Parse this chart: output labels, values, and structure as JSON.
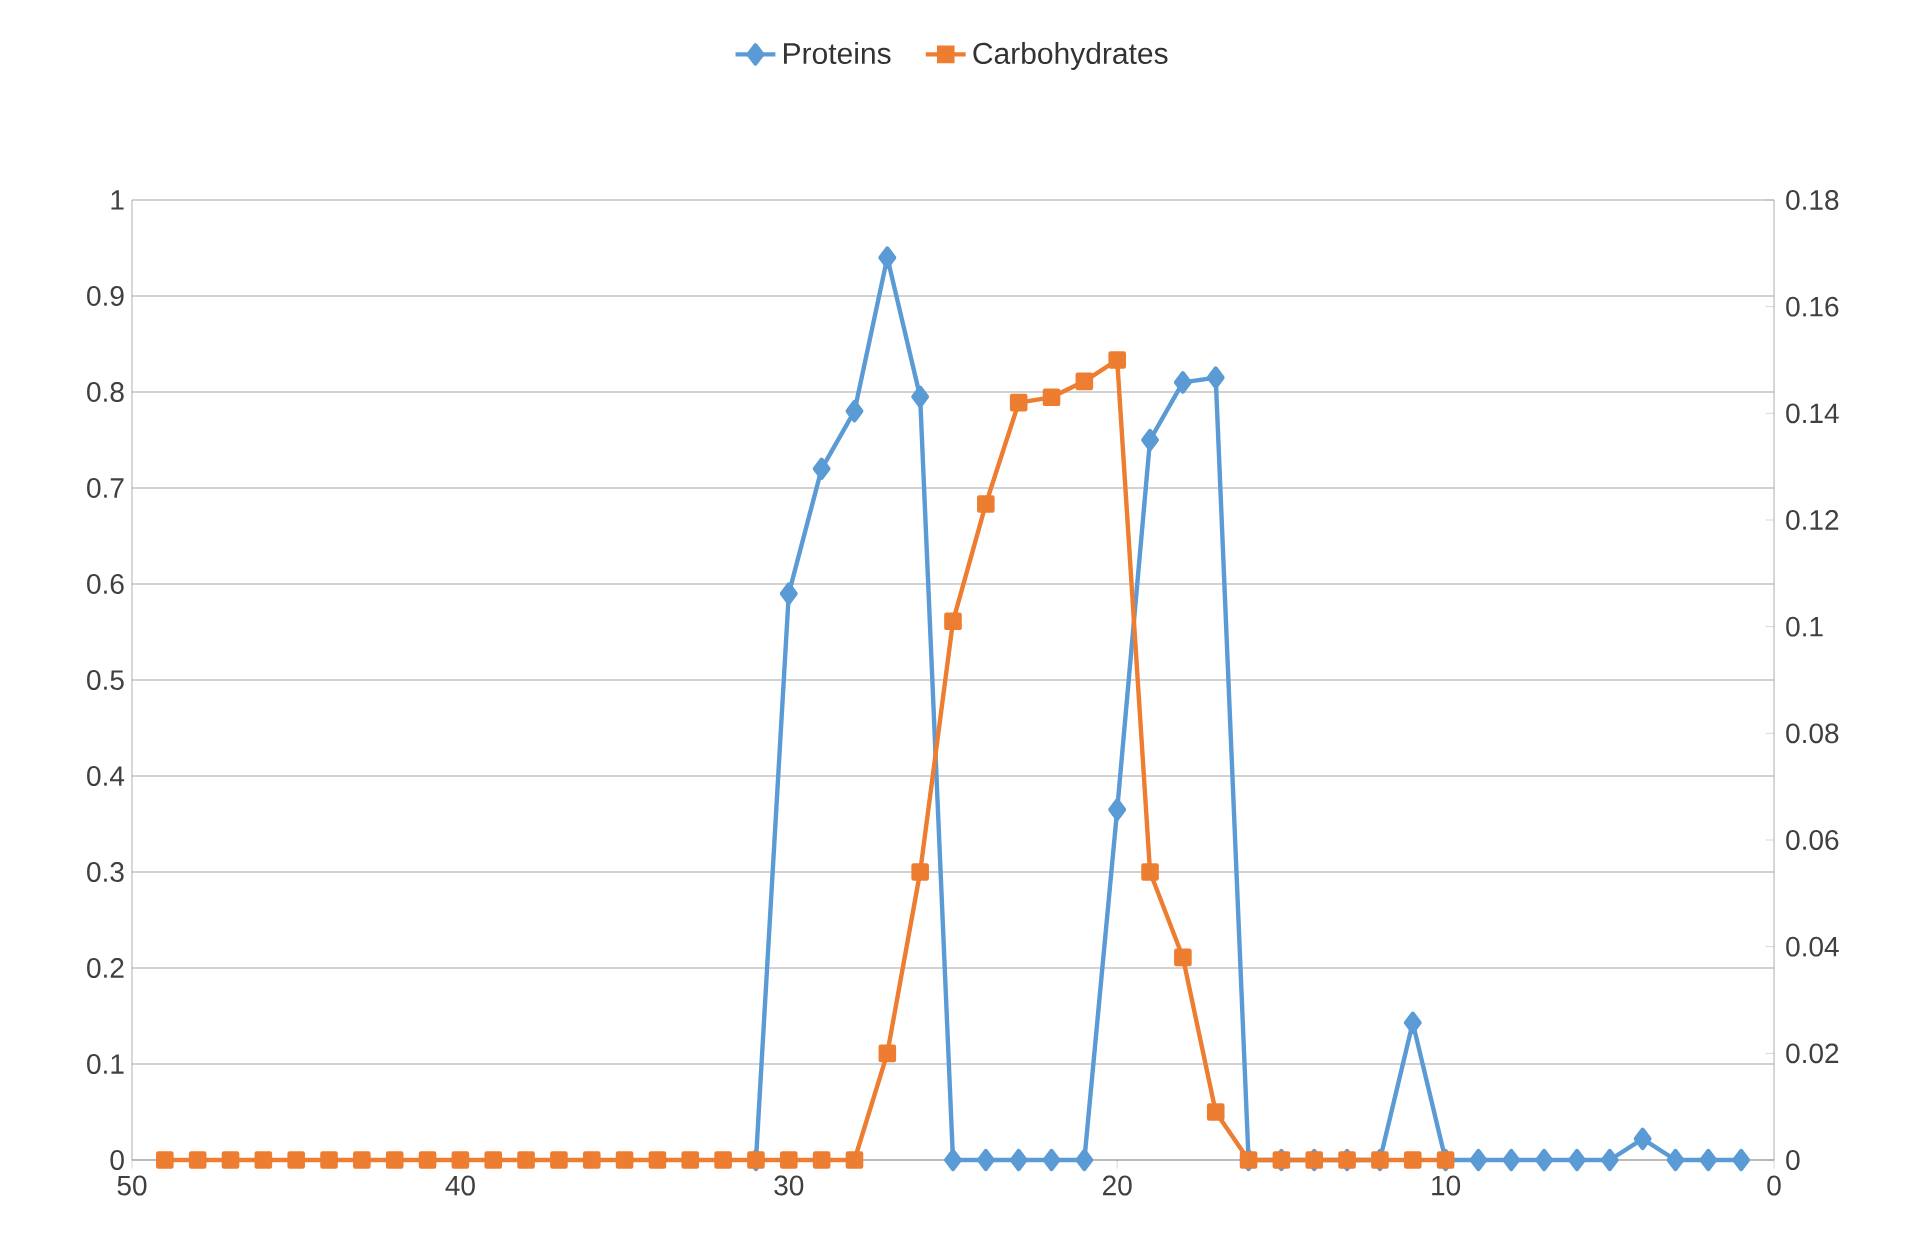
{
  "chart_data": {
    "type": "line",
    "legend": "top",
    "grid": "y",
    "xlim": [
      50,
      0
    ],
    "xticks": [
      50,
      40,
      30,
      20,
      10,
      0
    ],
    "ylim": [
      0,
      1
    ],
    "yticks": [
      0,
      0.1,
      0.2,
      0.3,
      0.4,
      0.5,
      0.6,
      0.7,
      0.8,
      0.9,
      1
    ],
    "y2lim": [
      0,
      0.18
    ],
    "y2ticks": [
      0,
      0.02,
      0.04,
      0.06,
      0.08,
      0.1,
      0.12,
      0.14,
      0.16,
      0.18
    ],
    "series": [
      {
        "name": "Proteins",
        "color": "#5b9bd5",
        "marker": "diamond",
        "x": [
          31,
          30,
          29,
          28,
          27,
          26,
          25,
          24,
          23,
          22,
          21,
          20,
          19,
          18,
          17,
          16,
          15,
          14,
          13,
          12,
          11,
          10,
          9,
          8,
          7,
          6,
          5,
          4,
          3,
          2,
          1
        ],
        "values": [
          0,
          0.59,
          0.72,
          0.78,
          0.94,
          0.795,
          0,
          0,
          0,
          0,
          0,
          0.365,
          0.75,
          0.81,
          0.815,
          0,
          0,
          0,
          0,
          0,
          0.143,
          0,
          0,
          0,
          0,
          0,
          0,
          0.022,
          0,
          0,
          0
        ]
      },
      {
        "name": "Carbohydrates",
        "color": "#ed7d31",
        "marker": "square",
        "axis": "y2",
        "x": [
          49,
          48,
          47,
          46,
          45,
          44,
          43,
          42,
          41,
          40,
          39,
          38,
          37,
          36,
          35,
          34,
          33,
          32,
          31,
          30,
          29,
          28,
          27,
          26,
          25,
          24,
          23,
          22,
          21,
          20,
          19,
          18,
          17,
          16,
          15,
          14,
          13,
          12,
          11,
          10
        ],
        "values": [
          0,
          0,
          0,
          0,
          0,
          0,
          0,
          0,
          0,
          0,
          0,
          0,
          0,
          0,
          0,
          0,
          0,
          0,
          0,
          0,
          0,
          0,
          0.02,
          0.054,
          0.101,
          0.123,
          0.142,
          0.143,
          0.146,
          0.15,
          0.054,
          0.038,
          0.009,
          0,
          0,
          0,
          0,
          0,
          0,
          0
        ]
      }
    ]
  }
}
